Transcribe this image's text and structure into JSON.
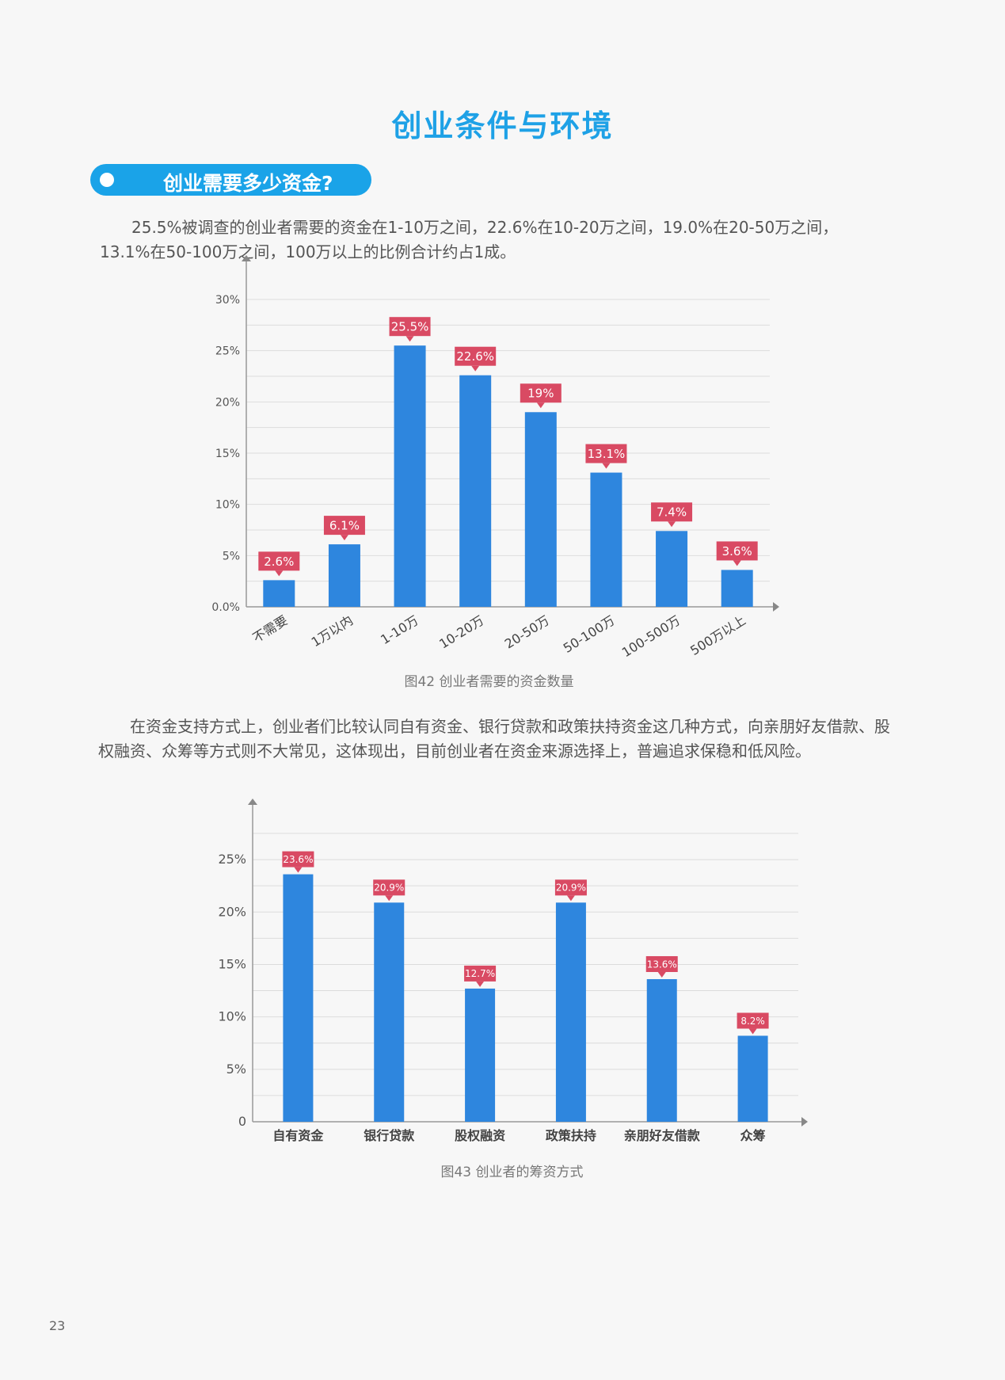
{
  "page_title": "创业条件与环境",
  "section_title": "创业需要多少资金?",
  "paragraph1": "25.5%被调查的创业者需要的资金在1-10万之间，22.6%在10-20万之间，19.0%在20-50万之间，13.1%在50-100万之间，100万以上的比例合计约占1成。",
  "paragraph2": "在资金支持方式上，创业者们比较认同自有资金、银行贷款和政策扶持资金这几种方式，向亲朋好友借款、股权融资、众筹等方式则不大常见，这体现出，目前创业者在资金来源选择上，普遍追求保稳和低风险。",
  "caption1": "图42 创业者需要的资金数量",
  "caption2": "图43  创业者的筹资方式",
  "page_number": "23",
  "colors": {
    "bar": "#2e86de",
    "label": "#d94a63",
    "title": "#1ea1e6",
    "pill": "#1aa3e8"
  },
  "chart_data": [
    {
      "type": "bar",
      "categories": [
        "不需要",
        "1万以内",
        "1-10万",
        "10-20万",
        "20-50万",
        "50-100万",
        "100-500万",
        "500万以上"
      ],
      "values": [
        2.6,
        6.1,
        25.5,
        22.6,
        19,
        13.1,
        7.4,
        3.6
      ],
      "data_labels": [
        "2.6%",
        "6.1%",
        "25.5%",
        "22.6%",
        "19%",
        "13.1%",
        "7.4%",
        "3.6%"
      ],
      "yticks": [
        0,
        5,
        10,
        15,
        20,
        25,
        30
      ],
      "ytick_labels": [
        "0.0%",
        "5%",
        "10%",
        "15%",
        "20%",
        "25%",
        "30%"
      ],
      "ylim": [
        0,
        30
      ],
      "grid": true,
      "rotated_x_labels": true
    },
    {
      "type": "bar",
      "categories": [
        "自有资金",
        "银行贷款",
        "股权融资",
        "政策扶持",
        "亲朋好友借款",
        "众筹"
      ],
      "values": [
        23.6,
        20.9,
        12.7,
        20.9,
        13.6,
        8.2
      ],
      "data_labels": [
        "23.6%",
        "20.9%",
        "12.7%",
        "20.9%",
        "13.6%",
        "8.2%"
      ],
      "yticks": [
        0,
        5,
        10,
        15,
        20,
        25
      ],
      "ytick_labels": [
        "0",
        "5%",
        "10%",
        "15%",
        "20%",
        "25%"
      ],
      "ylim": [
        0,
        27.5
      ],
      "grid": true,
      "rotated_x_labels": false
    }
  ]
}
